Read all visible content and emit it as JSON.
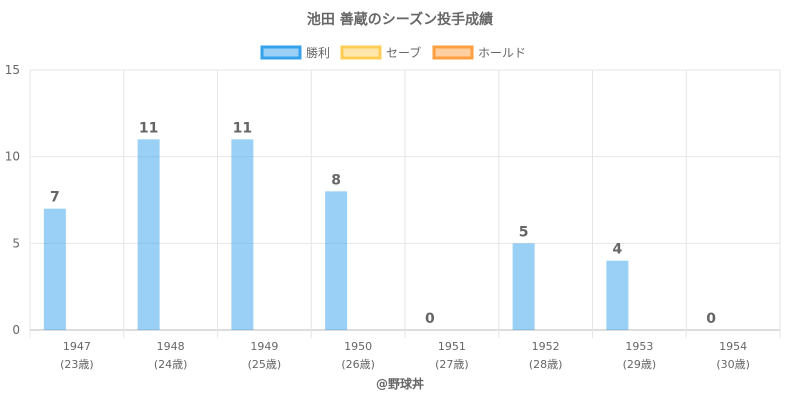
{
  "chart_data": {
    "type": "bar",
    "title": "池田 善蔵のシーズン投手成績",
    "categories": [
      "1947",
      "1948",
      "1949",
      "1950",
      "1951",
      "1952",
      "1953",
      "1954"
    ],
    "category_sublabels": [
      "(23歳)",
      "(24歳)",
      "(25歳)",
      "(26歳)",
      "(27歳)",
      "(28歳)",
      "(29歳)",
      "(30歳)"
    ],
    "series": [
      {
        "name": "勝利",
        "values": [
          7,
          11,
          11,
          8,
          0,
          5,
          4,
          0
        ],
        "color": "#36a2eb"
      },
      {
        "name": "セーブ",
        "values": [
          0,
          0,
          0,
          0,
          0,
          0,
          0,
          0
        ],
        "color": "#ffcd56"
      },
      {
        "name": "ホールド",
        "values": [
          0,
          0,
          0,
          0,
          0,
          0,
          0,
          0
        ],
        "color": "#ff9f40"
      }
    ],
    "data_labels": [
      "7",
      "11",
      "11",
      "8",
      "0",
      "5",
      "4",
      "0"
    ],
    "yticks": [
      "0",
      "5",
      "10",
      "15"
    ],
    "ylim": [
      0,
      15
    ],
    "grid": true,
    "legend_position": "top"
  },
  "footer": {
    "credit": "@野球丼"
  }
}
